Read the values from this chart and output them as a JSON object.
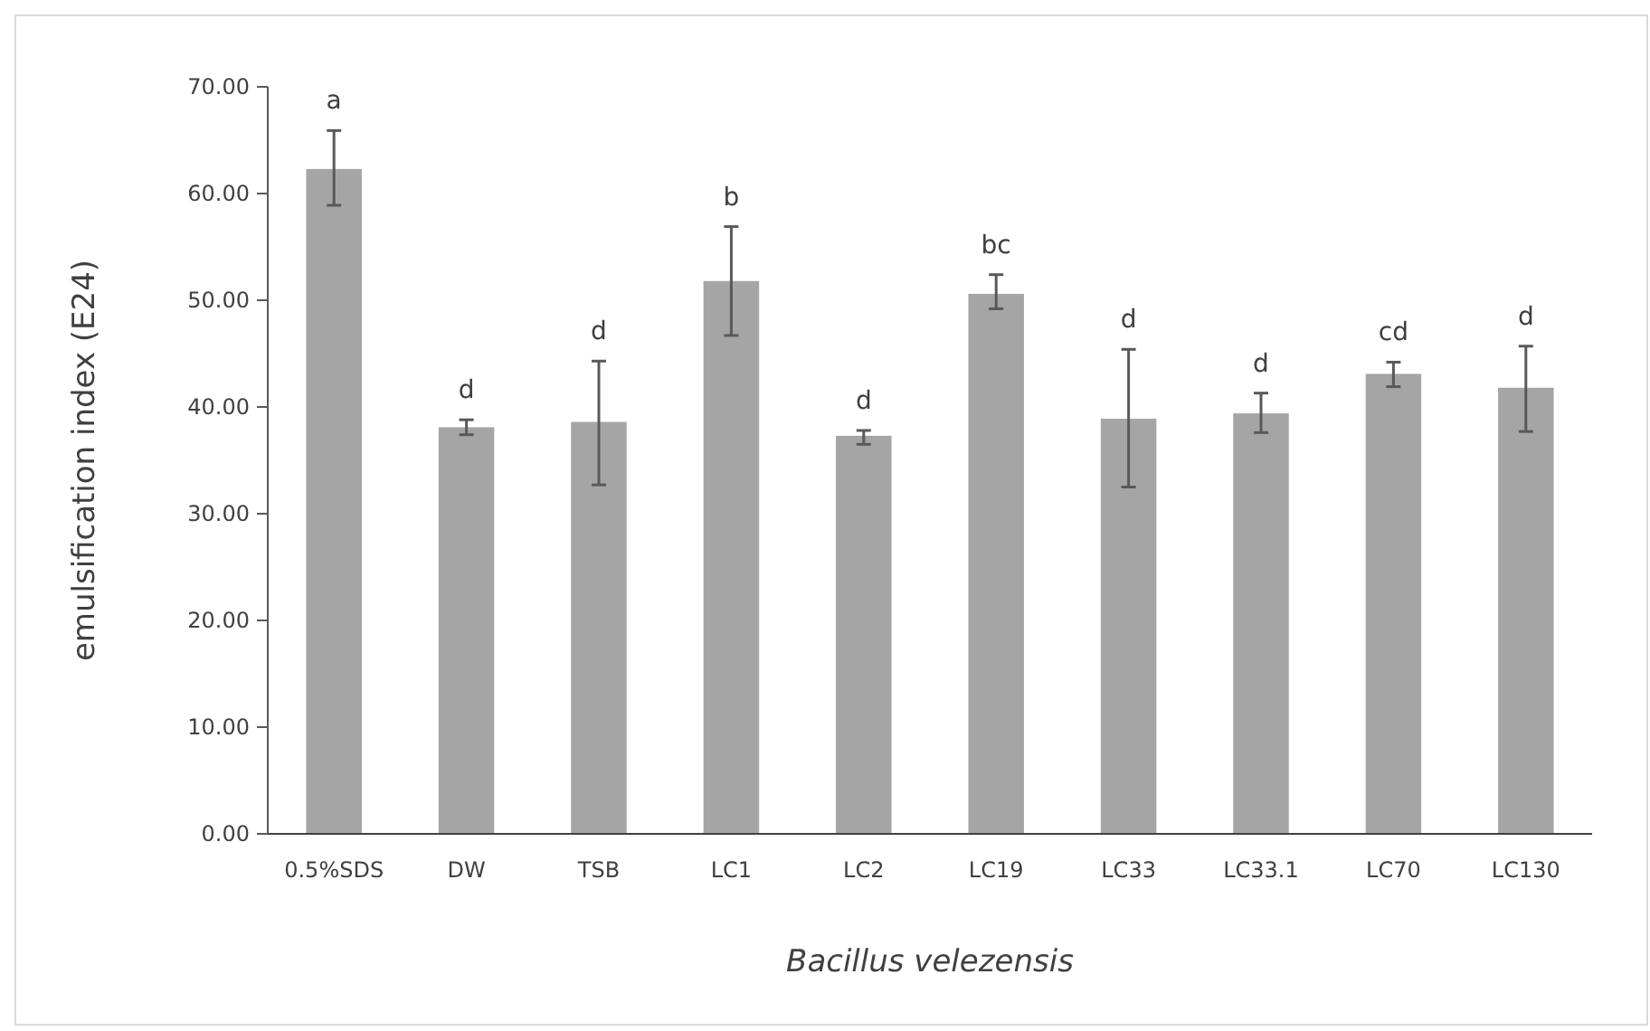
{
  "chart_data": {
    "type": "bar",
    "xlabel": "Bacillus velezensis",
    "ylabel": "emulsification index (E24)",
    "categories": [
      "0.5%SDS",
      "DW",
      "TSB",
      "LC1",
      "LC2",
      "LC19",
      "LC33",
      "LC33.1",
      "LC70",
      "LC130"
    ],
    "values": [
      62.3,
      38.1,
      38.6,
      51.8,
      37.3,
      50.6,
      38.9,
      39.4,
      43.1,
      41.8
    ],
    "errors": [
      [
        58.9,
        65.9
      ],
      [
        37.4,
        38.8
      ],
      [
        32.7,
        44.3
      ],
      [
        46.7,
        56.9
      ],
      [
        36.5,
        37.8
      ],
      [
        49.2,
        52.4
      ],
      [
        32.5,
        45.4
      ],
      [
        37.6,
        41.3
      ],
      [
        41.9,
        44.2
      ],
      [
        37.7,
        45.7
      ]
    ],
    "color": "#a5a5a5",
    "ylim": [
      0,
      70
    ],
    "yticks": [
      {
        "value": 0,
        "label": "0.00"
      },
      {
        "value": 10,
        "label": "10.00"
      },
      {
        "value": 20,
        "label": "20.00"
      },
      {
        "value": 30,
        "label": "30.00"
      },
      {
        "value": 40,
        "label": "40.00"
      },
      {
        "value": 50,
        "label": "50.00"
      },
      {
        "value": 60,
        "label": "60.00"
      },
      {
        "value": 70,
        "label": "70.00"
      }
    ],
    "annotations": [
      "a",
      "d",
      "d",
      "b",
      "d",
      "bc",
      "d",
      "d",
      "cd",
      "d"
    ],
    "grid": false
  }
}
